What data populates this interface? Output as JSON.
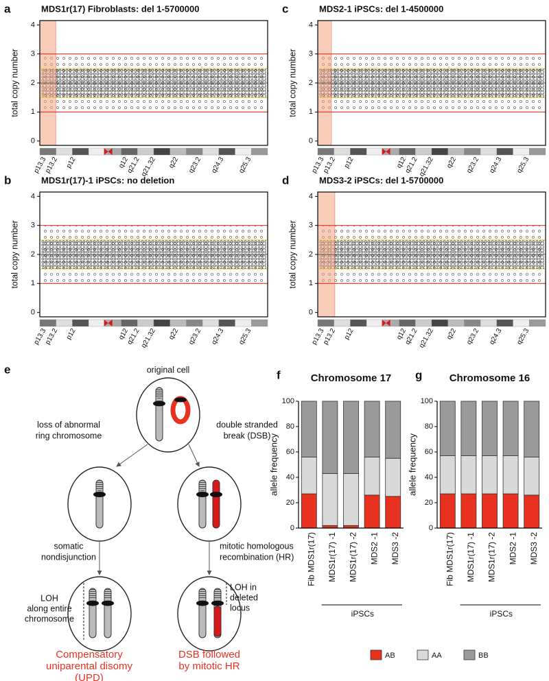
{
  "chart_data": [
    {
      "type": "copy-number",
      "panel": "a",
      "title": "MDS1r(17) Fibroblasts: del 1-5700000",
      "y_label": "total copy number",
      "ylim": [
        -0.15,
        4.15
      ],
      "yticks": [
        0,
        1,
        2,
        3,
        4
      ],
      "red_lines": [
        1,
        3
      ],
      "yellow_lines": [
        1.5,
        2.5
      ],
      "center_line": 2,
      "bands": [
        "p13.3",
        "p13.2",
        "p12",
        "q12",
        "q21.2",
        "q21.32",
        "q22",
        "q23.2",
        "q24.3",
        "q25.3"
      ]
    },
    {
      "type": "copy-number",
      "panel": "b",
      "title": "MDS1r(17)-1 iPSCs: no deletion",
      "y_label": "total copy number",
      "ylim": [
        -0.15,
        4.15
      ],
      "yticks": [
        0,
        1,
        2,
        3,
        4
      ],
      "red_lines": [
        1,
        3
      ],
      "yellow_lines": [
        1.5,
        2.5
      ],
      "center_line": 2,
      "bands": [
        "p13.3",
        "p13.2",
        "p12",
        "q12",
        "q21.2",
        "q21.32",
        "q22",
        "q23.2",
        "q24.3",
        "q25.3"
      ]
    },
    {
      "type": "copy-number",
      "panel": "c",
      "title": "MDS2-1 iPSCs: del 1-4500000",
      "y_label": "total copy number",
      "ylim": [
        -0.15,
        4.15
      ],
      "yticks": [
        0,
        1,
        2,
        3,
        4
      ],
      "red_lines": [
        1,
        3
      ],
      "yellow_lines": [
        1.5,
        2.5
      ],
      "center_line": 2,
      "bands": [
        "p13.3",
        "p13.2",
        "p12",
        "q12",
        "q21.2",
        "q21.32",
        "q22",
        "q23.2",
        "q24.3",
        "q25.3"
      ]
    },
    {
      "type": "copy-number",
      "panel": "d",
      "title": "MDS3-2 iPSCs: del 1-5700000",
      "y_label": "total copy number",
      "ylim": [
        -0.15,
        4.15
      ],
      "yticks": [
        0,
        1,
        2,
        3,
        4
      ],
      "red_lines": [
        1,
        3
      ],
      "yellow_lines": [
        1.5,
        2.5
      ],
      "center_line": 2,
      "bands": [
        "p13.3",
        "p13.2",
        "p12",
        "q12",
        "q21.2",
        "q21.32",
        "q22",
        "q23.2",
        "q24.3",
        "q25.3"
      ]
    },
    {
      "type": "stacked-bar",
      "panel": "f",
      "title": "Chromosome 17",
      "y_label": "allele frequency",
      "categories": [
        "Fib MDS1r(17)",
        "MDS1r(17) -1",
        "MDS1r(17) -2",
        "MDS2 -1",
        "MDS3 -2"
      ],
      "group_label": "iPSCs",
      "ylim": [
        0,
        100
      ],
      "yticks": [
        0,
        20,
        40,
        60,
        80,
        100
      ],
      "series": [
        {
          "name": "AB",
          "color": "#e8311f",
          "values": [
            27,
            2,
            2,
            26,
            25
          ]
        },
        {
          "name": "AA",
          "color": "#d9d9d9",
          "values": [
            29,
            41,
            41,
            30,
            30
          ]
        },
        {
          "name": "BB",
          "color": "#9a9a9a",
          "values": [
            44,
            57,
            57,
            44,
            45
          ]
        }
      ]
    },
    {
      "type": "stacked-bar",
      "panel": "g",
      "title": "Chromosome 16",
      "y_label": "allele frequency",
      "categories": [
        "Fib MDS1r(17)",
        "MDS1r(17) -1",
        "MDS1r(17) -2",
        "MDS2 -1",
        "MDS3 -2"
      ],
      "group_label": "iPSCs",
      "ylim": [
        0,
        100
      ],
      "yticks": [
        0,
        20,
        40,
        60,
        80,
        100
      ],
      "series": [
        {
          "name": "AB",
          "color": "#e8311f",
          "values": [
            27,
            27,
            27,
            27,
            26
          ]
        },
        {
          "name": "AA",
          "color": "#d9d9d9",
          "values": [
            30,
            30,
            30,
            30,
            30
          ]
        },
        {
          "name": "BB",
          "color": "#9a9a9a",
          "values": [
            43,
            43,
            43,
            43,
            44
          ]
        }
      ]
    }
  ],
  "diagram": {
    "panel": "e",
    "original": "original cell",
    "left_event": [
      "loss of abnormal",
      "ring chromosome"
    ],
    "right_event": [
      "double stranded",
      "break (DSB)"
    ],
    "left_step": [
      "somatic",
      "nondisjunction"
    ],
    "right_step": [
      "mitotic homologous",
      "recombination (HR)"
    ],
    "left_loh": [
      "LOH",
      "along entire",
      "chromosome"
    ],
    "right_loh": [
      "LOH in",
      "deleted",
      "locus"
    ],
    "left_result": [
      "Compensatory",
      "uniparental disomy",
      "(UPD)"
    ],
    "right_result": [
      "DSB followed",
      "by mitotic HR"
    ]
  }
}
